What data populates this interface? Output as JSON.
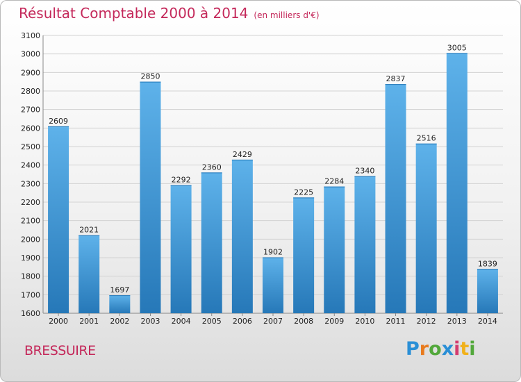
{
  "header": {
    "title": "Résultat Comptable 2000 à 2014",
    "subtitle": "(en milliers d'€)"
  },
  "footer": {
    "city": "BRESSUIRE",
    "logo": [
      "P",
      "r",
      "o",
      "x",
      "i",
      "t",
      "i"
    ]
  },
  "colors": {
    "bar_top": "#5eb2ea",
    "bar_bottom": "#2678b8",
    "title": "#c4285a",
    "grid": "#d2d2d2"
  },
  "chart_data": {
    "type": "bar",
    "title": "Résultat Comptable 2000 à 2014",
    "subtitle": "(en milliers d'€)",
    "categories": [
      "2000",
      "2001",
      "2002",
      "2003",
      "2004",
      "2005",
      "2006",
      "2007",
      "2008",
      "2009",
      "2010",
      "2011",
      "2012",
      "2013",
      "2014"
    ],
    "values": [
      2609,
      2021,
      1697,
      2850,
      2292,
      2360,
      2429,
      1902,
      2225,
      2284,
      2340,
      2837,
      2516,
      3005,
      1839
    ],
    "ylim": [
      1600,
      3100
    ],
    "yticks": [
      1600,
      1700,
      1800,
      1900,
      2000,
      2100,
      2200,
      2300,
      2400,
      2500,
      2600,
      2700,
      2800,
      2900,
      3000,
      3100
    ],
    "grid": true,
    "legend": "none"
  }
}
